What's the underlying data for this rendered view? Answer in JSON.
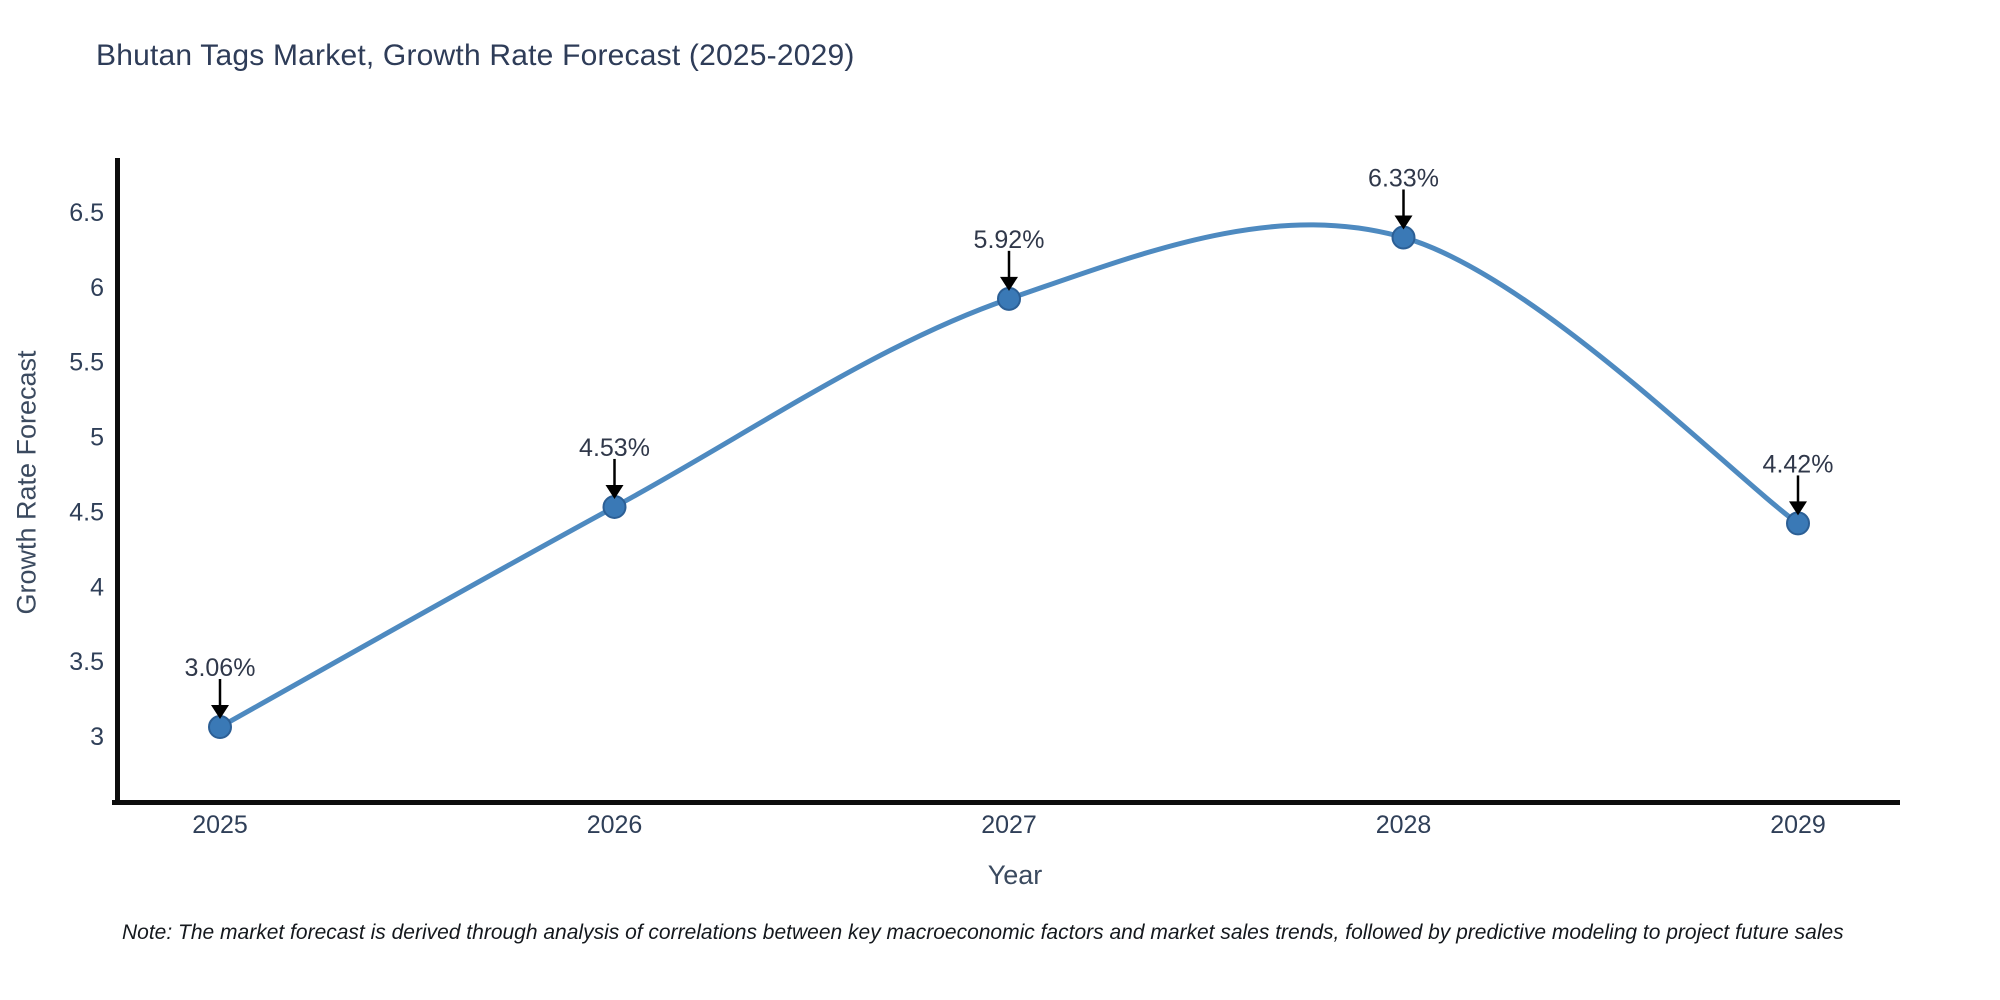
{
  "chart": {
    "title": "Bhutan Tags Market, Growth Rate Forecast (2025-2029)",
    "x_axis_title": "Year",
    "y_axis_title": "Growth Rate Forecast",
    "note": "Note: The market forecast is derived through analysis of correlations between key macroeconomic factors and market sales trends, followed by predictive modeling to project future sales",
    "colors": {
      "line": "#4e8ac0",
      "marker_fill": "#3a79b6",
      "marker_edge": "#2c5f95",
      "axis": "#0d0d0d",
      "title_text": "#2e3c58",
      "tick_text": "#2f3f58",
      "annotation_text": "#30384a",
      "arrow": "#000000",
      "background": "#ffffff"
    }
  },
  "chart_data": {
    "type": "line",
    "title": "Bhutan Tags Market, Growth Rate Forecast (2025-2029)",
    "xlabel": "Year",
    "ylabel": "Growth Rate Forecast",
    "categories": [
      "2025",
      "2026",
      "2027",
      "2028",
      "2029"
    ],
    "values": [
      3.06,
      4.53,
      5.92,
      6.33,
      4.42
    ],
    "point_labels": [
      "3.06%",
      "4.53%",
      "5.92%",
      "6.33%",
      "4.42%"
    ],
    "y_ticks": [
      3,
      3.5,
      4,
      4.5,
      5,
      5.5,
      6,
      6.5
    ],
    "ylim": [
      2.56,
      6.85
    ],
    "line_shape": "spline",
    "markers": true,
    "annotations_with_arrows": true,
    "grid": false,
    "legend_position": "none"
  }
}
